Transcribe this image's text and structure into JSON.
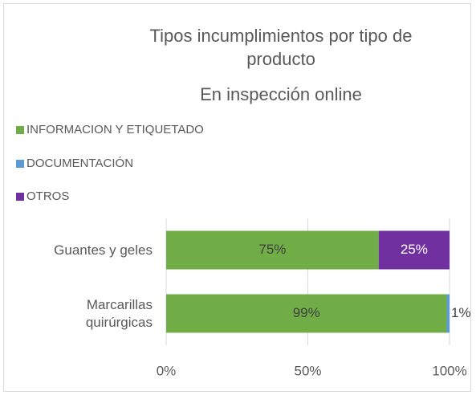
{
  "chart_data": {
    "type": "stacked-bar-horizontal",
    "title": "Tipos incumplimientos por tipo de producto",
    "subtitle": "En inspección online",
    "categories": [
      "Guantes y geles",
      "Marcarillas quirúrgicas"
    ],
    "series": [
      {
        "name": "INFORMACION Y ETIQUETADO",
        "color": "#70ad47",
        "values": [
          75,
          99
        ],
        "value_labels": [
          "75%",
          "99%"
        ]
      },
      {
        "name": "DOCUMENTACIÓN",
        "color": "#5b9bd5",
        "values": [
          0,
          1
        ],
        "value_labels": [
          null,
          "1%"
        ]
      },
      {
        "name": "OTROS",
        "color": "#7030a0",
        "values": [
          25,
          0
        ],
        "value_labels": [
          "25%",
          null
        ]
      }
    ],
    "xlim": [
      0,
      100
    ],
    "xticks": [
      {
        "value": 0,
        "label": "0%"
      },
      {
        "value": 50,
        "label": "50%"
      },
      {
        "value": 100,
        "label": "100%"
      }
    ],
    "grid": true,
    "legend": "top-left"
  }
}
